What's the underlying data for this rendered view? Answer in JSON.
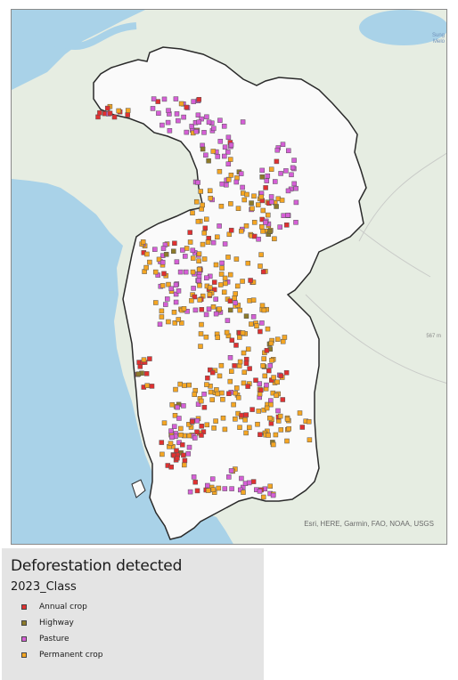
{
  "map": {
    "attribution": "Esri, HERE, Garmin, FAO, NOAA, USGS",
    "corner_label": "Sung\nMelo",
    "elevation_label": "567 m",
    "colors": {
      "water": "#a9d2e8",
      "land": "#e6ede2",
      "study_area": "#fafafa",
      "boundary": "#2a2a2a"
    }
  },
  "legend": {
    "title": "Deforestation detected",
    "subtitle": "2023_Class",
    "items": [
      {
        "label": "Annual crop",
        "color": "#e03131"
      },
      {
        "label": "Highway",
        "color": "#8c7a2a"
      },
      {
        "label": "Pasture",
        "color": "#d55fd6"
      },
      {
        "label": "Permanent crop",
        "color": "#f5a623"
      }
    ]
  }
}
